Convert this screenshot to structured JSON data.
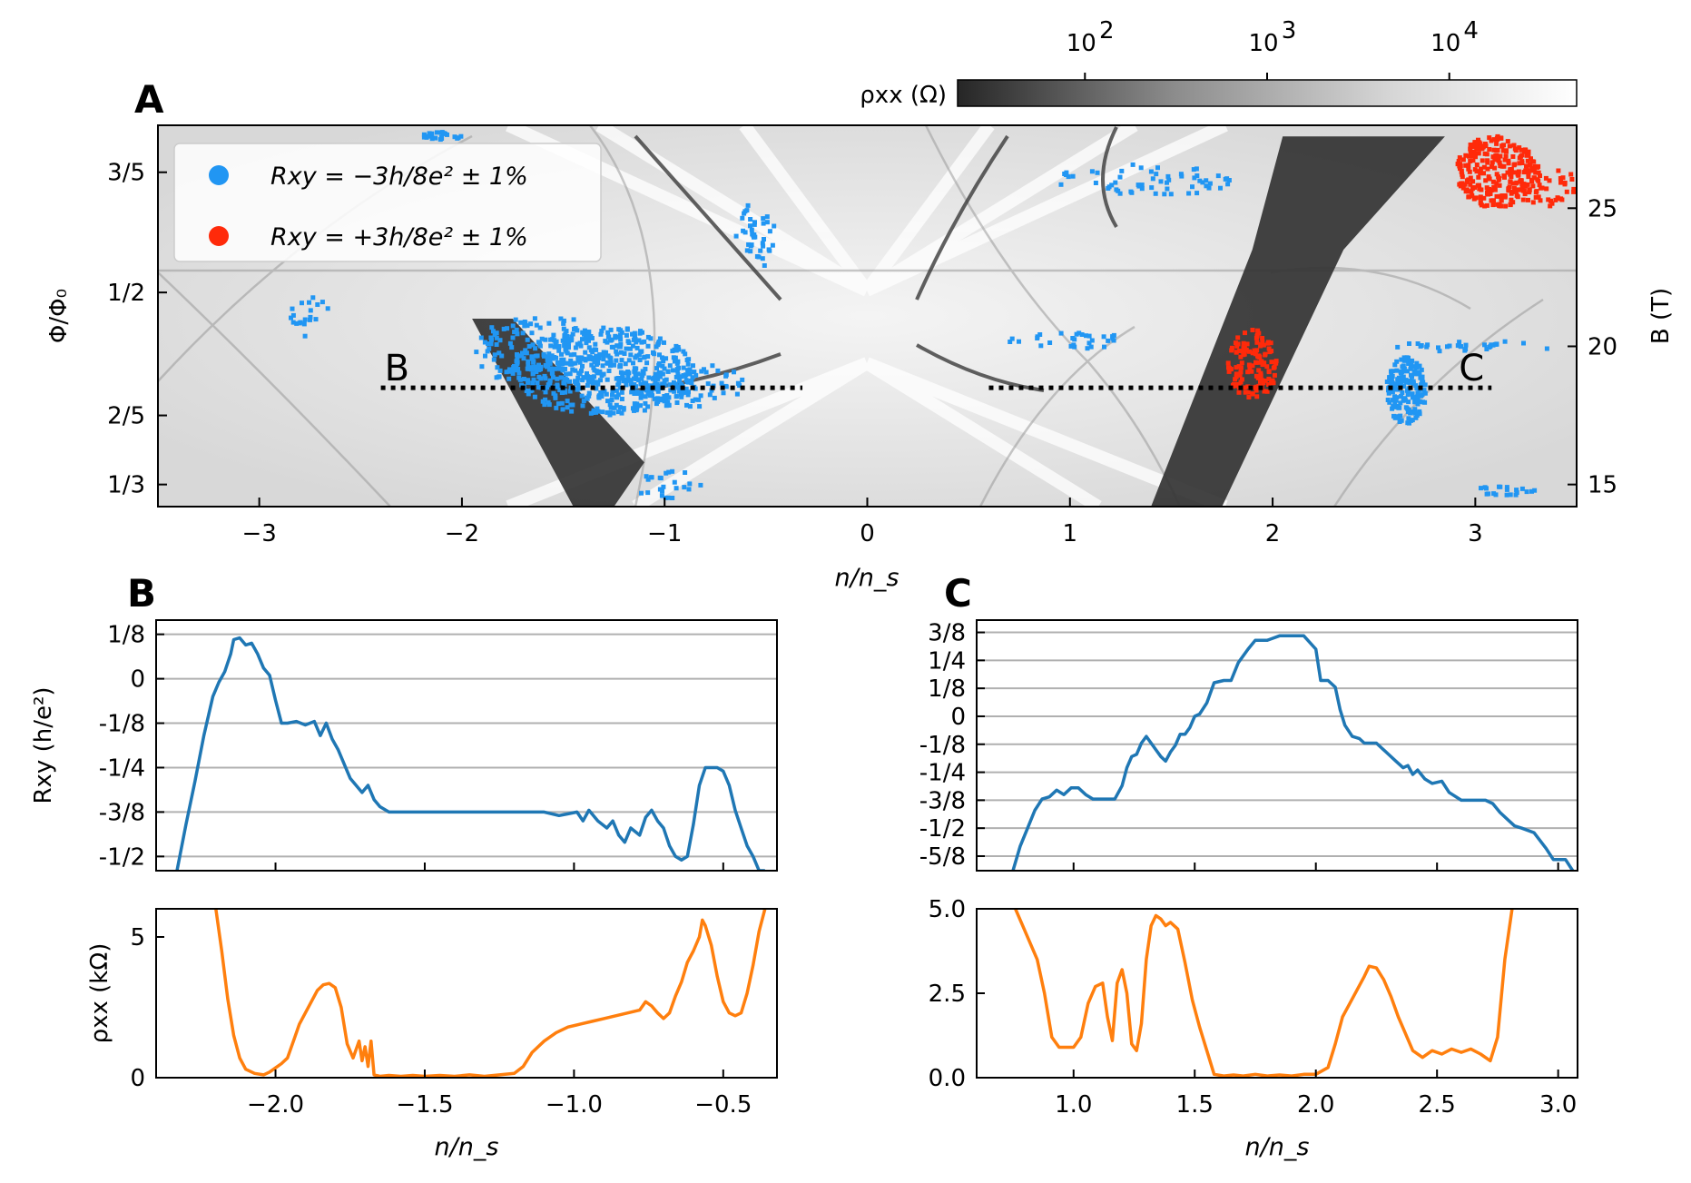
{
  "colors": {
    "blue_points": "#2196f3",
    "red_points": "#ff2a0a",
    "rxy_line": "#1f77b4",
    "rhoxx_line": "#ff7f0e",
    "grid": "#b0b0b0",
    "dark_feature": "#333333"
  },
  "chart_data": [
    {
      "id": "A",
      "type": "heatmap",
      "panel_label": "A",
      "xlabel": "n/n_s",
      "ylabel_left": "Φ/Φ₀",
      "ylabel_right": "B (T)",
      "xlim": [
        -3.5,
        3.5
      ],
      "ylim_B": [
        14.2,
        28.0
      ],
      "x_ticks": [
        -3,
        -2,
        -1,
        0,
        1,
        2,
        3
      ],
      "x_tick_labels": [
        "−3",
        "−2",
        "−1",
        "0",
        "1",
        "2",
        "3"
      ],
      "left_ticks_B": [
        15.0,
        17.5,
        21.95,
        26.3
      ],
      "left_tick_labels": [
        "1/3",
        "2/5",
        "1/2",
        "3/5"
      ],
      "right_ticks_B": [
        15,
        20,
        25
      ],
      "right_tick_labels": [
        "15",
        "20",
        "25"
      ],
      "colorbar": {
        "label": "ρxx (Ω)",
        "scale": "log",
        "range": [
          20,
          50000
        ],
        "ticks": [
          100,
          1000,
          10000
        ],
        "tick_bases": [
          "10",
          "10",
          "10"
        ],
        "tick_exponents": [
          "2",
          "3",
          "4"
        ]
      },
      "legend": [
        {
          "name": "Rxy = −3h/8e² ± 1%",
          "color": "#2196f3"
        },
        {
          "name": "Rxy = +3h/8e² ± 1%",
          "color": "#ff2a0a"
        }
      ],
      "cut_lines": [
        {
          "label": "B",
          "x_range": [
            -2.4,
            -0.32
          ],
          "B": 18.5
        },
        {
          "label": "C",
          "x_range": [
            0.6,
            3.08
          ],
          "B": 18.5
        }
      ],
      "dark_regions": [
        {
          "polygon": [
            [
              -1.95,
              21.0
            ],
            [
              -1.75,
              21.0
            ],
            [
              -1.1,
              15.8
            ],
            [
              -1.25,
              14.2
            ],
            [
              -1.45,
              14.2
            ]
          ]
        },
        {
          "polygon": [
            [
              1.4,
              14.2
            ],
            [
              1.75,
              14.2
            ],
            [
              2.35,
              23.5
            ],
            [
              2.85,
              27.6
            ],
            [
              2.05,
              27.6
            ],
            [
              1.9,
              23.5
            ]
          ]
        }
      ],
      "blue_clusters": [
        {
          "cx": -1.3,
          "B": 19.1,
          "rx": 0.45,
          "rB": 1.6,
          "n": 500
        },
        {
          "cx": -1.6,
          "B": 19.8,
          "rx": 0.35,
          "rB": 1.3,
          "n": 150
        },
        {
          "cx": -0.9,
          "B": 18.6,
          "rx": 0.3,
          "rB": 0.8,
          "n": 90
        },
        {
          "cx": 2.66,
          "B": 18.4,
          "rx": 0.1,
          "rB": 1.2,
          "n": 170
        },
        {
          "cx": -2.1,
          "B": 27.6,
          "rx": 0.1,
          "rB": 0.15,
          "n": 25
        },
        {
          "cx": 1.35,
          "B": 26.0,
          "rx": 0.45,
          "rB": 0.6,
          "n": 60
        },
        {
          "cx": -0.55,
          "B": 24.0,
          "rx": 0.1,
          "rB": 1.2,
          "n": 40
        },
        {
          "cx": 1.0,
          "B": 20.2,
          "rx": 0.3,
          "rB": 0.3,
          "n": 30
        },
        {
          "cx": 3.0,
          "B": 20.0,
          "rx": 0.4,
          "rB": 0.2,
          "n": 30
        },
        {
          "cx": -2.75,
          "B": 21.0,
          "rx": 0.1,
          "rB": 0.8,
          "n": 20
        },
        {
          "cx": 3.15,
          "B": 14.8,
          "rx": 0.15,
          "rB": 0.2,
          "n": 20
        },
        {
          "cx": -1.0,
          "B": 15.0,
          "rx": 0.2,
          "rB": 0.5,
          "n": 25
        }
      ],
      "red_clusters": [
        {
          "cx": 3.1,
          "B": 26.3,
          "rx": 0.2,
          "rB": 1.3,
          "n": 260
        },
        {
          "cx": 3.35,
          "B": 25.8,
          "rx": 0.15,
          "rB": 0.8,
          "n": 60
        },
        {
          "cx": 1.9,
          "B": 19.3,
          "rx": 0.12,
          "rB": 1.3,
          "n": 130
        }
      ]
    },
    {
      "id": "B_rxy",
      "type": "line",
      "panel_label": "B",
      "xlabel": "",
      "ylabel": "Rxy (h/e²)",
      "xlim": [
        -2.4,
        -0.32
      ],
      "ylim": [
        -0.54,
        0.165
      ],
      "y_ticks": [
        0.125,
        0,
        -0.125,
        -0.25,
        -0.375,
        -0.5
      ],
      "y_tick_labels": [
        "1/8",
        "0",
        "-1/8",
        "-1/4",
        "-3/8",
        "-1/2"
      ],
      "grid": true,
      "series": [
        {
          "color": "#1f77b4",
          "x": [
            -2.33,
            -2.3,
            -2.27,
            -2.24,
            -2.21,
            -2.19,
            -2.17,
            -2.15,
            -2.14,
            -2.12,
            -2.1,
            -2.08,
            -2.06,
            -2.04,
            -2.02,
            -2.0,
            -1.98,
            -1.96,
            -1.93,
            -1.9,
            -1.87,
            -1.85,
            -1.83,
            -1.81,
            -1.79,
            -1.77,
            -1.75,
            -1.73,
            -1.71,
            -1.69,
            -1.67,
            -1.65,
            -1.62,
            -1.58,
            -1.5,
            -1.4,
            -1.3,
            -1.2,
            -1.1,
            -1.05,
            -1.02,
            -0.99,
            -0.97,
            -0.95,
            -0.92,
            -0.89,
            -0.87,
            -0.85,
            -0.83,
            -0.81,
            -0.78,
            -0.76,
            -0.74,
            -0.72,
            -0.7,
            -0.68,
            -0.66,
            -0.64,
            -0.62,
            -0.6,
            -0.58,
            -0.56,
            -0.54,
            -0.52,
            -0.5,
            -0.48,
            -0.46,
            -0.44,
            -0.42,
            -0.4,
            -0.38,
            -0.36
          ],
          "y": [
            -0.54,
            -0.41,
            -0.29,
            -0.16,
            -0.05,
            -0.01,
            0.02,
            0.07,
            0.11,
            0.115,
            0.095,
            0.1,
            0.07,
            0.03,
            0.01,
            -0.06,
            -0.125,
            -0.125,
            -0.12,
            -0.13,
            -0.12,
            -0.16,
            -0.125,
            -0.17,
            -0.2,
            -0.24,
            -0.28,
            -0.3,
            -0.32,
            -0.3,
            -0.34,
            -0.36,
            -0.375,
            -0.375,
            -0.375,
            -0.375,
            -0.375,
            -0.375,
            -0.375,
            -0.385,
            -0.38,
            -0.375,
            -0.4,
            -0.37,
            -0.4,
            -0.42,
            -0.4,
            -0.44,
            -0.46,
            -0.42,
            -0.44,
            -0.39,
            -0.37,
            -0.4,
            -0.42,
            -0.47,
            -0.5,
            -0.51,
            -0.5,
            -0.41,
            -0.3,
            -0.25,
            -0.25,
            -0.25,
            -0.26,
            -0.3,
            -0.37,
            -0.42,
            -0.47,
            -0.5,
            -0.54,
            -0.54
          ]
        }
      ]
    },
    {
      "id": "B_rhoxx",
      "type": "line",
      "xlabel": "n/n_s",
      "ylabel": "ρxx (kΩ)",
      "xlim": [
        -2.4,
        -0.32
      ],
      "ylim": [
        0,
        6.0
      ],
      "x_ticks": [
        -2.0,
        -1.5,
        -1.0,
        -0.5
      ],
      "x_tick_labels": [
        "−2.0",
        "−1.5",
        "−1.0",
        "−0.5"
      ],
      "y_ticks": [
        0,
        5
      ],
      "y_tick_labels": [
        "0",
        "5"
      ],
      "series": [
        {
          "color": "#ff7f0e",
          "x": [
            -2.2,
            -2.18,
            -2.16,
            -2.14,
            -2.12,
            -2.1,
            -2.07,
            -2.04,
            -2.02,
            -2.0,
            -1.98,
            -1.96,
            -1.94,
            -1.92,
            -1.9,
            -1.88,
            -1.86,
            -1.84,
            -1.82,
            -1.8,
            -1.78,
            -1.76,
            -1.74,
            -1.72,
            -1.71,
            -1.7,
            -1.69,
            -1.68,
            -1.67,
            -1.65,
            -1.62,
            -1.58,
            -1.54,
            -1.5,
            -1.45,
            -1.4,
            -1.35,
            -1.3,
            -1.25,
            -1.2,
            -1.17,
            -1.14,
            -1.1,
            -1.06,
            -1.02,
            -0.98,
            -0.94,
            -0.9,
            -0.86,
            -0.82,
            -0.78,
            -0.76,
            -0.74,
            -0.72,
            -0.7,
            -0.68,
            -0.66,
            -0.64,
            -0.62,
            -0.6,
            -0.58,
            -0.57,
            -0.56,
            -0.54,
            -0.52,
            -0.5,
            -0.48,
            -0.46,
            -0.44,
            -0.42,
            -0.4,
            -0.38,
            -0.36
          ],
          "y": [
            6.0,
            4.5,
            2.8,
            1.5,
            0.7,
            0.3,
            0.15,
            0.1,
            0.2,
            0.35,
            0.5,
            0.7,
            1.3,
            1.9,
            2.3,
            2.7,
            3.1,
            3.3,
            3.35,
            3.2,
            2.5,
            1.2,
            0.7,
            1.3,
            0.6,
            1.1,
            0.4,
            1.3,
            0.1,
            0.05,
            0.08,
            0.05,
            0.08,
            0.05,
            0.08,
            0.05,
            0.1,
            0.05,
            0.1,
            0.15,
            0.4,
            0.9,
            1.3,
            1.6,
            1.8,
            1.9,
            2.0,
            2.1,
            2.2,
            2.3,
            2.4,
            2.7,
            2.55,
            2.3,
            2.1,
            2.3,
            2.9,
            3.4,
            4.1,
            4.5,
            5.0,
            5.6,
            5.4,
            4.7,
            3.6,
            2.7,
            2.3,
            2.2,
            2.3,
            3.0,
            4.0,
            5.2,
            6.0
          ]
        }
      ]
    },
    {
      "id": "C_rxy",
      "type": "line",
      "panel_label": "C",
      "xlabel": "",
      "ylabel": "",
      "xlim": [
        0.6,
        3.08
      ],
      "ylim": [
        -0.69,
        0.43
      ],
      "y_ticks": [
        0.375,
        0.25,
        0.125,
        0,
        -0.125,
        -0.25,
        -0.375,
        -0.5,
        -0.625
      ],
      "y_tick_labels": [
        "3/8",
        "1/4",
        "1/8",
        "0",
        "-1/8",
        "-1/4",
        "-3/8",
        "-1/2",
        "-5/8"
      ],
      "grid": true,
      "series": [
        {
          "color": "#1f77b4",
          "x": [
            0.75,
            0.78,
            0.81,
            0.84,
            0.87,
            0.9,
            0.93,
            0.96,
            0.99,
            1.02,
            1.05,
            1.08,
            1.11,
            1.14,
            1.17,
            1.2,
            1.22,
            1.24,
            1.26,
            1.28,
            1.3,
            1.32,
            1.34,
            1.36,
            1.38,
            1.4,
            1.42,
            1.44,
            1.46,
            1.48,
            1.5,
            1.52,
            1.55,
            1.58,
            1.62,
            1.65,
            1.68,
            1.72,
            1.75,
            1.8,
            1.85,
            1.9,
            1.95,
            2.0,
            2.02,
            2.05,
            2.08,
            2.1,
            2.12,
            2.15,
            2.18,
            2.2,
            2.25,
            2.3,
            2.33,
            2.36,
            2.38,
            2.4,
            2.42,
            2.45,
            2.48,
            2.52,
            2.55,
            2.6,
            2.65,
            2.7,
            2.73,
            2.76,
            2.79,
            2.82,
            2.85,
            2.9,
            2.95,
            2.98,
            3.0,
            3.03,
            3.06
          ],
          "y": [
            -0.69,
            -0.58,
            -0.5,
            -0.42,
            -0.37,
            -0.36,
            -0.33,
            -0.35,
            -0.32,
            -0.32,
            -0.35,
            -0.37,
            -0.37,
            -0.37,
            -0.37,
            -0.31,
            -0.23,
            -0.18,
            -0.17,
            -0.12,
            -0.09,
            -0.12,
            -0.15,
            -0.18,
            -0.2,
            -0.16,
            -0.13,
            -0.08,
            -0.08,
            -0.05,
            0.0,
            0.01,
            0.06,
            0.15,
            0.16,
            0.16,
            0.24,
            0.3,
            0.34,
            0.34,
            0.36,
            0.36,
            0.36,
            0.3,
            0.16,
            0.16,
            0.13,
            0.03,
            -0.04,
            -0.09,
            -0.1,
            -0.12,
            -0.12,
            -0.17,
            -0.2,
            -0.23,
            -0.22,
            -0.26,
            -0.24,
            -0.28,
            -0.3,
            -0.29,
            -0.34,
            -0.375,
            -0.375,
            -0.375,
            -0.39,
            -0.43,
            -0.46,
            -0.49,
            -0.5,
            -0.52,
            -0.59,
            -0.64,
            -0.64,
            -0.64,
            -0.69
          ]
        }
      ]
    },
    {
      "id": "C_rhoxx",
      "type": "line",
      "xlabel": "n/n_s",
      "ylabel": "",
      "xlim": [
        0.6,
        3.08
      ],
      "ylim": [
        0,
        5.0
      ],
      "x_ticks": [
        1.0,
        1.5,
        2.0,
        2.5,
        3.0
      ],
      "x_tick_labels": [
        "1.0",
        "1.5",
        "2.0",
        "2.5",
        "3.0"
      ],
      "y_ticks": [
        0,
        2.5,
        5.0
      ],
      "y_tick_labels": [
        "0.0",
        "2.5",
        "5.0"
      ],
      "series": [
        {
          "color": "#ff7f0e",
          "x": [
            0.76,
            0.79,
            0.82,
            0.85,
            0.88,
            0.91,
            0.94,
            0.97,
            1.0,
            1.03,
            1.06,
            1.09,
            1.12,
            1.14,
            1.16,
            1.18,
            1.2,
            1.22,
            1.24,
            1.26,
            1.28,
            1.3,
            1.32,
            1.34,
            1.36,
            1.38,
            1.4,
            1.43,
            1.46,
            1.49,
            1.52,
            1.55,
            1.58,
            1.62,
            1.66,
            1.7,
            1.75,
            1.8,
            1.85,
            1.9,
            1.95,
            2.0,
            2.05,
            2.08,
            2.11,
            2.14,
            2.17,
            2.2,
            2.22,
            2.25,
            2.28,
            2.31,
            2.34,
            2.37,
            2.4,
            2.44,
            2.48,
            2.52,
            2.56,
            2.6,
            2.64,
            2.68,
            2.72,
            2.75,
            2.78,
            2.81
          ],
          "y": [
            5.0,
            4.5,
            4.0,
            3.5,
            2.5,
            1.2,
            0.9,
            0.9,
            0.9,
            1.2,
            2.2,
            2.7,
            2.8,
            1.8,
            1.1,
            2.8,
            3.2,
            2.5,
            1.0,
            0.8,
            1.6,
            3.5,
            4.5,
            4.8,
            4.7,
            4.5,
            4.6,
            4.4,
            3.4,
            2.3,
            1.5,
            0.8,
            0.1,
            0.05,
            0.08,
            0.05,
            0.1,
            0.05,
            0.08,
            0.05,
            0.1,
            0.1,
            0.3,
            1.0,
            1.8,
            2.2,
            2.6,
            3.0,
            3.3,
            3.25,
            2.9,
            2.4,
            1.8,
            1.3,
            0.8,
            0.6,
            0.8,
            0.7,
            0.85,
            0.75,
            0.85,
            0.7,
            0.5,
            1.2,
            3.5,
            5.0
          ]
        }
      ]
    }
  ]
}
